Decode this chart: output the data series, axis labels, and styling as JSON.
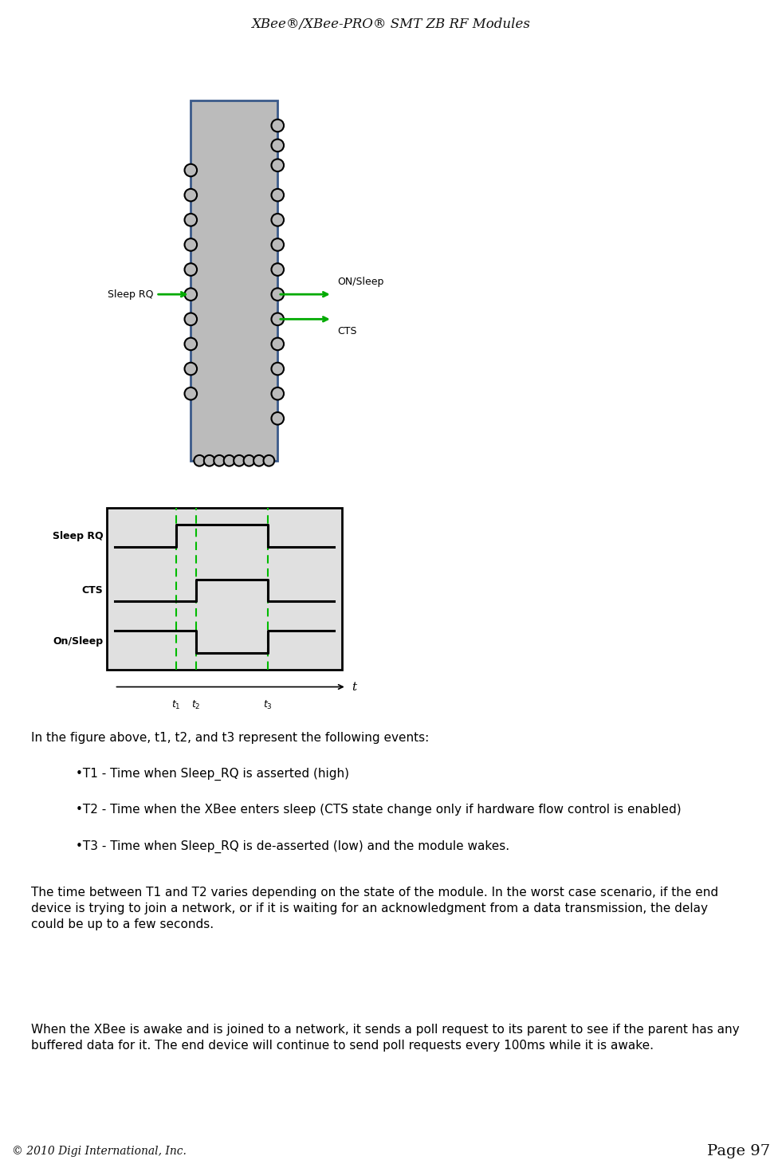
{
  "title": "XBee®/XBee-PRO® SMT ZB RF Modules",
  "footer_left": "© 2010 Digi International, Inc.",
  "footer_right": "Page 97",
  "header_bar_dark": "#6B1515",
  "header_bar_light": "#9B2222",
  "bg_color": "#ffffff",
  "chip_border_color": "#3B5A8A",
  "chip_fill_color": "#BBBBBB",
  "green_line_color": "#00AA00",
  "timing_bg": "#E0E0E0",
  "timing_border": "#333333",
  "dashed_color": "#00BB00",
  "on_sleep_label": "ON/Sleep",
  "cts_label": "CTS",
  "sleep_rq_label": "Sleep RQ",
  "body_text_1": "In the figure above, t1, t2, and t3 represent the following events:",
  "bullet1": "•T1 - Time when Sleep_RQ is asserted (high)",
  "bullet2": "•T2 - Time when the XBee enters sleep (CTS state change only if hardware flow control is enabled)",
  "bullet3": "•T3 - Time when Sleep_RQ is de-asserted (low) and the module wakes.",
  "body_text_2": "The time between T1 and T2 varies depending on the state of the module. In the worst case scenario, if the end\ndevice is trying to join a network, or if it is waiting for an acknowledgment from a data transmission, the delay\ncould be up to a few seconds.",
  "body_text_3": "When the XBee is awake and is joined to a network, it sends a poll request to its parent to see if the parent has any\nbuffered data for it. The end device will continue to send poll requests every 100ms while it is awake."
}
